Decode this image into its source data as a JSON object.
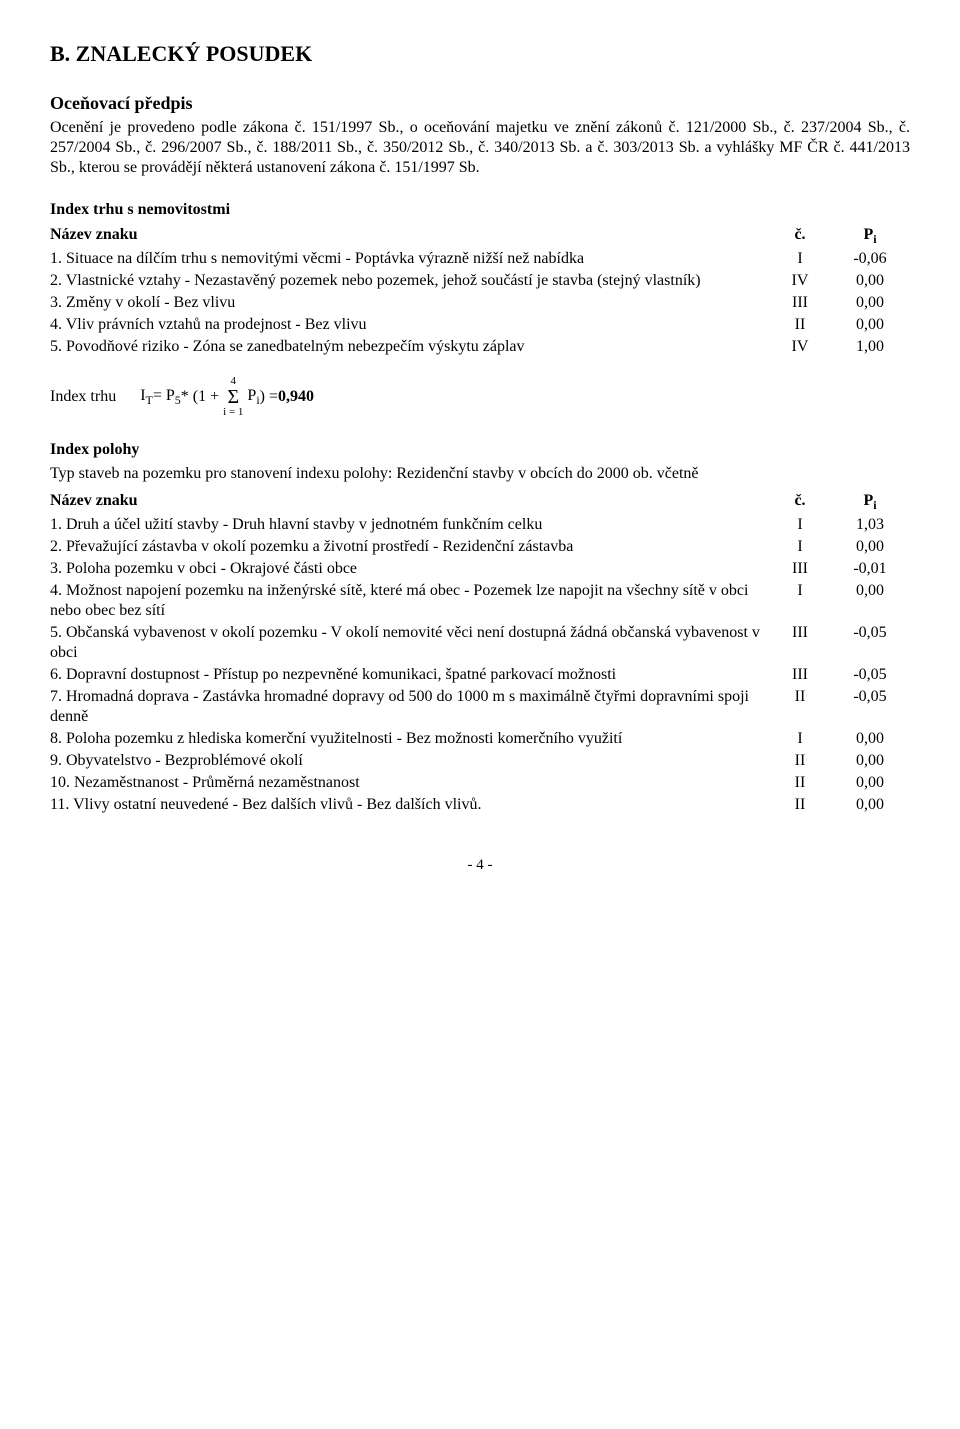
{
  "title": "B. ZNALECKÝ POSUDEK",
  "section_predpis": {
    "heading": "Oceňovací předpis",
    "text": "Ocenění je provedeno podle zákona č. 151/1997 Sb., o oceňování majetku ve znění zákonů č. 121/2000 Sb., č. 237/2004 Sb., č. 257/2004 Sb., č. 296/2007 Sb., č. 188/2011 Sb., č. 350/2012 Sb., č. 340/2013 Sb. a č. 303/2013 Sb. a vyhlášky MF ČR č. 441/2013 Sb., kterou se provádějí některá ustanovení zákona č. 151/1997 Sb."
  },
  "index_trhu": {
    "heading": "Index trhu s nemovitostmi",
    "header": {
      "name": "Název znaku",
      "c": "č.",
      "p_text": "P",
      "p_sub": "i"
    },
    "rows": [
      {
        "name": "1. Situace na dílčím trhu s nemovitými věcmi - Poptávka výrazně nižší než nabídka",
        "c": "I",
        "p": "-0,06"
      },
      {
        "name": "2. Vlastnické vztahy - Nezastavěný pozemek nebo pozemek, jehož součástí je stavba (stejný vlastník)",
        "c": "IV",
        "p": "0,00"
      },
      {
        "name": "3. Změny v okolí - Bez vlivu",
        "c": "III",
        "p": "0,00"
      },
      {
        "name": "4. Vliv právních vztahů na prodejnost - Bez vlivu",
        "c": "II",
        "p": "0,00"
      },
      {
        "name": "5. Povodňové riziko - Zóna se zanedbatelným nebezpečím výskytu záplav",
        "c": "IV",
        "p": "1,00"
      }
    ],
    "formula": {
      "label": "Index trhu",
      "lhs_var": "I",
      "lhs_sub": "T",
      "prefix": " = P",
      "prefix_sub": "5",
      "mid": " * (1 + ",
      "sigma_top": "4",
      "sigma_bot": "i = 1",
      "sigma_sym": "Σ",
      "after_sigma_var": " P",
      "after_sigma_sub": "i",
      "close": ") = ",
      "result": "0,940"
    }
  },
  "index_polohy": {
    "heading": "Index polohy",
    "intro": "Typ staveb na pozemku pro stanovení indexu polohy: Rezidenční stavby v obcích do 2000 ob. včetně",
    "header": {
      "name": "Název znaku",
      "c": "č.",
      "p_text": "P",
      "p_sub": "i"
    },
    "rows": [
      {
        "name": "1. Druh a účel užití stavby - Druh hlavní stavby v jednotném funkčním celku",
        "c": "I",
        "p": "1,03"
      },
      {
        "name": "2. Převažující zástavba v okolí pozemku a životní prostředí - Rezidenční zástavba",
        "c": "I",
        "p": "0,00"
      },
      {
        "name": "3. Poloha pozemku v obci - Okrajové části obce",
        "c": "III",
        "p": "-0,01"
      },
      {
        "name": "4. Možnost napojení pozemku na inženýrské sítě, které má obec - Pozemek lze napojit na všechny sítě v obci nebo obec bez sítí",
        "c": "I",
        "p": "0,00"
      },
      {
        "name": "5. Občanská vybavenost v okolí pozemku - V okolí nemovité věci není dostupná žádná občanská vybavenost v obci",
        "c": "III",
        "p": "-0,05"
      },
      {
        "name": "6. Dopravní dostupnost - Přístup po nezpevněné komunikaci, špatné parkovací možnosti",
        "c": "III",
        "p": "-0,05"
      },
      {
        "name": "7. Hromadná doprava - Zastávka hromadné dopravy od 500 do 1000 m s maximálně čtyřmi dopravními spoji denně",
        "c": "II",
        "p": "-0,05"
      },
      {
        "name": "8. Poloha pozemku z hlediska komerční využitelnosti - Bez možnosti komerčního využití",
        "c": "I",
        "p": "0,00"
      },
      {
        "name": "9. Obyvatelstvo - Bezproblémové okolí",
        "c": "II",
        "p": "0,00"
      },
      {
        "name": "10. Nezaměstnanost - Průměrná nezaměstnanost",
        "c": "II",
        "p": "0,00"
      },
      {
        "name": "11. Vlivy ostatní neuvedené - Bez dalších vlivů - Bez dalších vlivů.",
        "c": "II",
        "p": "0,00"
      }
    ]
  },
  "page_number": "- 4 -"
}
